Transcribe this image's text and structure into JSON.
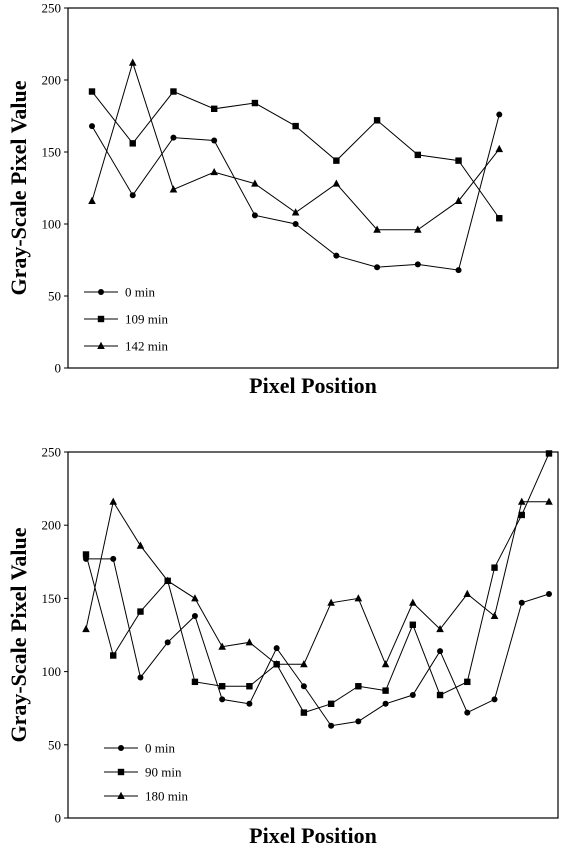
{
  "chart_data": [
    {
      "type": "line",
      "title": "",
      "xlabel": "Pixel Position",
      "ylabel": "Gray-Scale Pixel Value",
      "ylim": [
        0,
        250
      ],
      "yticks": [
        "0",
        "50",
        "100",
        "150",
        "200",
        "250"
      ],
      "grid": false,
      "legend_position": "bottom-left",
      "x": [
        1,
        2,
        3,
        4,
        5,
        6,
        7,
        8,
        9,
        10,
        11,
        12
      ],
      "series": [
        {
          "name": "0 min",
          "marker": "circle",
          "values": [
            168,
            120,
            160,
            158,
            106,
            100,
            78,
            70,
            72,
            68,
            176,
            null
          ]
        },
        {
          "name": "109 min",
          "marker": "square",
          "values": [
            192,
            156,
            192,
            180,
            184,
            168,
            144,
            172,
            148,
            144,
            104,
            null
          ]
        },
        {
          "name": "142 min",
          "marker": "triangle",
          "values": [
            116,
            212,
            124,
            136,
            128,
            108,
            128,
            96,
            96,
            116,
            152,
            null
          ]
        }
      ]
    },
    {
      "type": "line",
      "title": "",
      "xlabel": "Pixel Position",
      "ylabel": "Gray-Scale Pixel Value",
      "ylim": [
        0,
        250
      ],
      "yticks": [
        "0",
        "50",
        "100",
        "150",
        "200",
        "250"
      ],
      "grid": false,
      "legend_position": "bottom-left",
      "x": [
        1,
        2,
        3,
        4,
        5,
        6,
        7,
        8,
        9,
        10,
        11,
        12,
        13,
        14,
        15,
        16,
        17,
        18
      ],
      "series": [
        {
          "name": "0 min",
          "marker": "circle",
          "values": [
            177,
            177,
            96,
            120,
            138,
            81,
            78,
            116,
            90,
            63,
            66,
            78,
            84,
            114,
            72,
            81,
            147,
            153
          ]
        },
        {
          "name": "90 min",
          "marker": "square",
          "values": [
            180,
            111,
            141,
            162,
            93,
            90,
            90,
            105,
            72,
            78,
            90,
            87,
            132,
            84,
            93,
            171,
            207,
            249
          ]
        },
        {
          "name": "180 min",
          "marker": "triangle",
          "values": [
            129,
            216,
            186,
            162,
            150,
            117,
            120,
            105,
            105,
            147,
            150,
            105,
            147,
            129,
            153,
            138,
            216,
            216
          ]
        }
      ]
    }
  ]
}
